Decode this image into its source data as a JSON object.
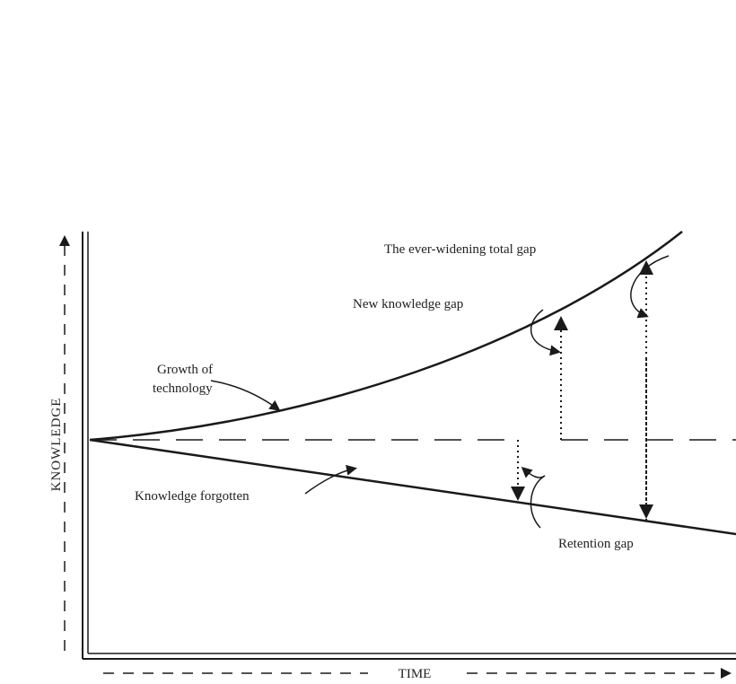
{
  "axes": {
    "y_label": "KNOWLEDGE",
    "x_label": "TIME"
  },
  "labels": {
    "total_gap": "The ever-widening total gap",
    "new_gap": "New knowledge gap",
    "growth": [
      "Growth of",
      "technology"
    ],
    "forgotten": "Knowledge forgotten",
    "retention": "Retention gap"
  }
}
